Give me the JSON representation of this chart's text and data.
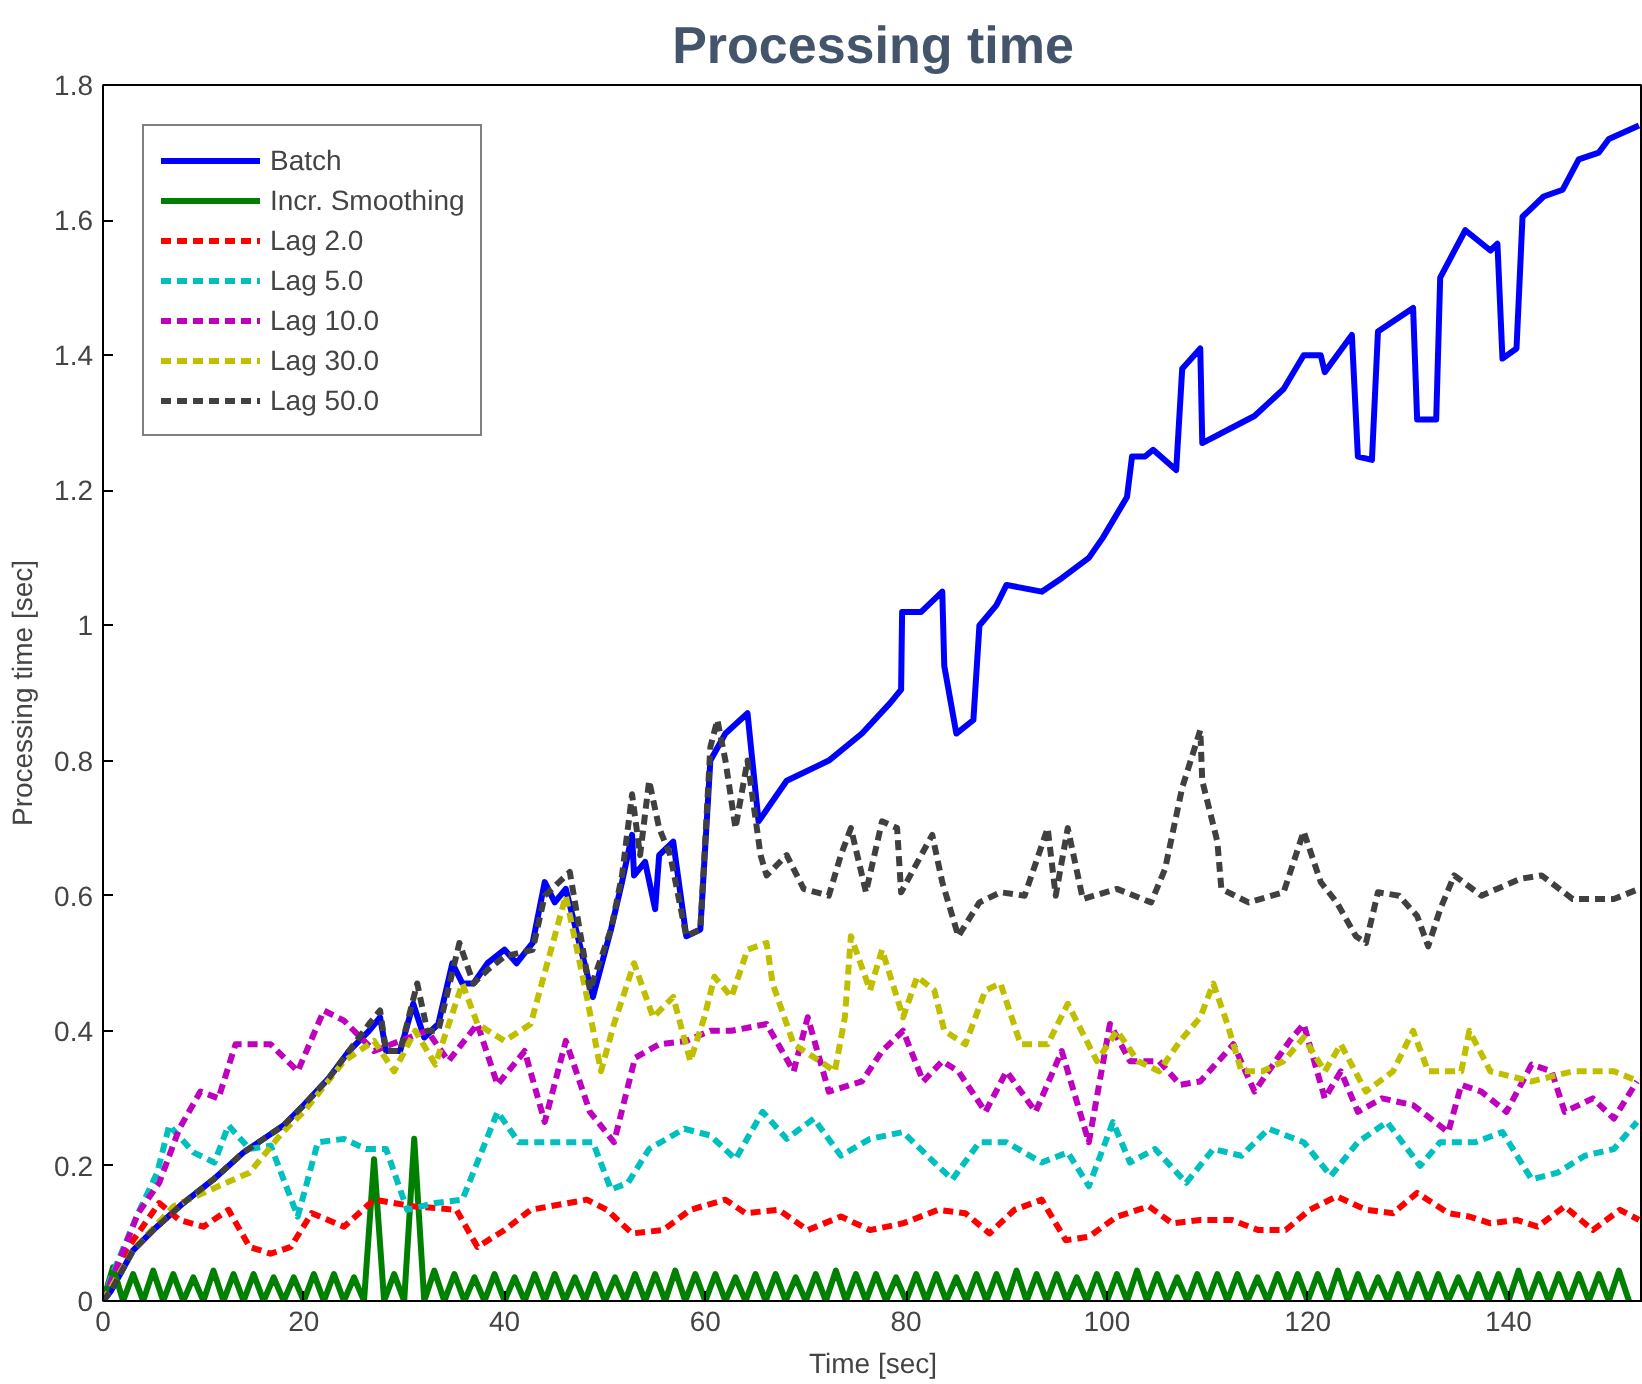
{
  "chart_data": {
    "type": "line",
    "title": "Processing time",
    "xlabel": "Time [sec]",
    "ylabel": "Processing time [sec]",
    "xlim": [
      0,
      153.4
    ],
    "ylim": [
      0,
      1.8
    ],
    "xticks": [
      0,
      20,
      40,
      60,
      80,
      100,
      120,
      140
    ],
    "yticks": [
      0,
      {
        "value": 0.2,
        "label": "0.2"
      },
      {
        "value": 0.4,
        "label": "0.4"
      },
      {
        "value": 0.6,
        "label": "0.6"
      },
      {
        "value": 0.8,
        "label": "0.8"
      },
      1,
      {
        "value": 1.2,
        "label": "1.2"
      },
      {
        "value": 1.4,
        "label": "1.4"
      },
      {
        "value": 1.6,
        "label": "1.6"
      },
      {
        "value": 1.8,
        "label": "1.8"
      }
    ],
    "grid": false,
    "legend": "top left",
    "marker": "none",
    "series": [
      {
        "name": "Batch",
        "color": "#0000ff",
        "line_style": "solid",
        "x": [
          0,
          0.8,
          3,
          5,
          8,
          11,
          14,
          16,
          18,
          20,
          22.5,
          24.5,
          26.5,
          27.6,
          28.2,
          29.6,
          30.9,
          32,
          33.4,
          34.8,
          35.8,
          36.9,
          38.3,
          40,
          41.2,
          42.8,
          44,
          45,
          46.1,
          48.8,
          50.6,
          51.7,
          52.7,
          52.9,
          54,
          55,
          55.4,
          56.8,
          58.1,
          59.5,
          60.5,
          62,
          64.2,
          65.3,
          68.1,
          72.3,
          75.6,
          78.4,
          79.5,
          79.6,
          81.5,
          83.6,
          83.8,
          85,
          86.7,
          87.3,
          89,
          90,
          93.5,
          95.5,
          98.2,
          99.6,
          102,
          102.5,
          103.8,
          104.6,
          106.9,
          107.5,
          109.3,
          109.5,
          113.4,
          114.7,
          117.6,
          119.6,
          121.3,
          121.7,
          124.4,
          125,
          126.4,
          127,
          130.5,
          130.9,
          132.8,
          133.2,
          135.7,
          138.2,
          138.9,
          139.4,
          140.8,
          141.4,
          143.5,
          145.4,
          147,
          149,
          150,
          153
        ],
        "values": [
          0,
          0.015,
          0.075,
          0.105,
          0.145,
          0.18,
          0.22,
          0.24,
          0.26,
          0.29,
          0.33,
          0.37,
          0.4,
          0.42,
          0.37,
          0.37,
          0.44,
          0.39,
          0.41,
          0.5,
          0.47,
          0.47,
          0.5,
          0.52,
          0.5,
          0.53,
          0.62,
          0.59,
          0.61,
          0.45,
          0.55,
          0.62,
          0.69,
          0.63,
          0.65,
          0.58,
          0.66,
          0.68,
          0.54,
          0.55,
          0.8,
          0.84,
          0.87,
          0.71,
          0.77,
          0.8,
          0.84,
          0.885,
          0.905,
          1.02,
          1.02,
          1.05,
          0.94,
          0.84,
          0.86,
          1,
          1.03,
          1.06,
          1.05,
          1.07,
          1.1,
          1.13,
          1.19,
          1.25,
          1.25,
          1.26,
          1.23,
          1.38,
          1.41,
          1.27,
          1.3,
          1.31,
          1.35,
          1.4,
          1.4,
          1.375,
          1.43,
          1.25,
          1.245,
          1.435,
          1.47,
          1.305,
          1.305,
          1.515,
          1.585,
          1.555,
          1.565,
          1.395,
          1.41,
          1.605,
          1.635,
          1.645,
          1.69,
          1.7,
          1.72,
          1.74
        ]
      },
      {
        "name": "Incr. Smoothing",
        "color": "#008000",
        "line_style": "solid",
        "x": [
          0,
          1,
          2,
          3,
          4,
          5,
          6,
          7,
          8,
          9,
          10,
          11,
          12,
          13,
          14,
          15,
          16,
          17,
          18,
          19,
          20,
          21,
          22,
          23,
          24,
          25,
          26,
          27,
          28,
          29,
          30,
          31,
          32,
          33,
          34,
          35,
          36,
          37,
          38,
          39,
          40,
          41,
          42,
          43,
          44,
          45,
          46,
          47,
          48,
          49,
          50,
          51,
          52,
          53,
          54,
          55,
          56,
          57,
          58,
          59,
          60,
          61,
          62,
          63,
          64,
          65,
          66,
          67,
          68,
          69,
          70,
          71,
          72,
          73,
          74,
          75,
          76,
          77,
          78,
          79,
          80,
          81,
          82,
          83,
          84,
          85,
          86,
          87,
          88,
          89,
          90,
          91,
          92,
          93,
          94,
          95,
          96,
          97,
          98,
          99,
          100,
          101,
          102,
          103,
          104,
          105,
          106,
          107,
          108,
          109,
          110,
          111,
          112,
          113,
          114,
          115,
          116,
          117,
          118,
          119,
          120,
          121,
          122,
          123,
          124,
          125,
          126,
          127,
          128,
          129,
          130,
          131,
          132,
          133,
          134,
          135,
          136,
          137,
          138,
          139,
          140,
          141,
          142,
          143,
          144,
          145,
          146,
          147,
          148,
          149,
          150,
          151,
          152
        ],
        "values": [
          0,
          0.05,
          0,
          0.04,
          0,
          0.045,
          0,
          0.04,
          0,
          0.035,
          0,
          0.045,
          0,
          0.04,
          0,
          0.04,
          0,
          0.035,
          0,
          0.035,
          0,
          0.04,
          0,
          0.04,
          0,
          0.035,
          0,
          0.21,
          0,
          0.04,
          0,
          0.24,
          0,
          0.045,
          0,
          0.04,
          0,
          0.035,
          0,
          0.04,
          0,
          0.035,
          0,
          0.04,
          0,
          0.04,
          0,
          0.035,
          0,
          0.04,
          0,
          0.035,
          0,
          0.04,
          0,
          0.04,
          0,
          0.045,
          0,
          0.04,
          0,
          0.04,
          0,
          0.035,
          0,
          0.04,
          0,
          0.04,
          0,
          0.035,
          0,
          0.04,
          0,
          0.045,
          0,
          0.04,
          0,
          0.04,
          0,
          0.035,
          0,
          0.04,
          0,
          0.04,
          0,
          0.035,
          0,
          0.04,
          0,
          0.04,
          0,
          0.045,
          0,
          0.04,
          0,
          0.04,
          0,
          0.035,
          0,
          0.04,
          0,
          0.04,
          0,
          0.045,
          0,
          0.04,
          0,
          0.035,
          0,
          0.04,
          0,
          0.04,
          0,
          0.04,
          0,
          0.035,
          0,
          0.04,
          0,
          0.04,
          0,
          0.04,
          0,
          0.045,
          0,
          0.04,
          0,
          0.035,
          0,
          0.04,
          0,
          0.04,
          0,
          0.04,
          0,
          0.035,
          0,
          0.04,
          0,
          0.04,
          0,
          0.045,
          0,
          0.04,
          0,
          0.04,
          0,
          0.04,
          0,
          0.04,
          0,
          0.045,
          0
        ]
      },
      {
        "name": "Lag 2.0",
        "color": "#ff0000",
        "line_style": "dashed",
        "x": [
          0,
          2.3,
          5.6,
          7.6,
          10,
          12.5,
          14.6,
          16.7,
          18.7,
          20.8,
          24,
          27,
          31,
          35.2,
          37.3,
          40,
          42.6,
          48.2,
          50.2,
          52.7,
          55.8,
          58.5,
          62,
          64,
          67.3,
          70.2,
          73.5,
          76.4,
          79.7,
          83.2,
          85.9,
          88.3,
          90.8,
          93.5,
          95.9,
          98.2,
          101,
          104.2,
          106.5,
          109.3,
          112.4,
          115.1,
          117.8,
          120.2,
          122.9,
          125.8,
          128.5,
          130.9,
          134,
          136.1,
          138.2,
          140.8,
          142.9,
          145.6,
          148.4,
          151.1,
          153
        ],
        "values": [
          0,
          0.075,
          0.145,
          0.12,
          0.11,
          0.135,
          0.08,
          0.07,
          0.08,
          0.13,
          0.11,
          0.15,
          0.14,
          0.135,
          0.08,
          0.105,
          0.135,
          0.15,
          0.135,
          0.1,
          0.105,
          0.135,
          0.15,
          0.13,
          0.135,
          0.105,
          0.125,
          0.105,
          0.115,
          0.135,
          0.13,
          0.1,
          0.135,
          0.15,
          0.09,
          0.095,
          0.125,
          0.14,
          0.115,
          0.12,
          0.12,
          0.105,
          0.105,
          0.135,
          0.155,
          0.135,
          0.13,
          0.16,
          0.13,
          0.125,
          0.115,
          0.12,
          0.11,
          0.14,
          0.105,
          0.135,
          0.12
        ]
      },
      {
        "name": "Lag 5.0",
        "color": "#00bfbf",
        "line_style": "dashed",
        "x": [
          0,
          0.8,
          3.5,
          5.4,
          6.6,
          9,
          11.1,
          12.5,
          14.6,
          16.7,
          19.4,
          21.4,
          24,
          26.2,
          28.2,
          30.3,
          33.1,
          35.8,
          39.3,
          41.4,
          45.5,
          48.8,
          50.6,
          52.3,
          54.4,
          57.9,
          60.5,
          63,
          65.7,
          68.1,
          70.8,
          73.5,
          76.4,
          79.7,
          82.8,
          84.6,
          87.3,
          90,
          93.5,
          96.1,
          98.2,
          100.6,
          102.3,
          104.8,
          107.9,
          110.6,
          113.4,
          116.1,
          119.6,
          122.3,
          125,
          127.9,
          131.2,
          133.2,
          136.7,
          139.4,
          142.3,
          144.9,
          147.6,
          150.5,
          152.8
        ],
        "values": [
          0,
          0.035,
          0.13,
          0.19,
          0.26,
          0.22,
          0.205,
          0.26,
          0.225,
          0.23,
          0.125,
          0.235,
          0.24,
          0.225,
          0.225,
          0.135,
          0.145,
          0.15,
          0.28,
          0.235,
          0.235,
          0.235,
          0.165,
          0.175,
          0.225,
          0.255,
          0.245,
          0.21,
          0.28,
          0.24,
          0.27,
          0.215,
          0.24,
          0.25,
          0.205,
          0.18,
          0.235,
          0.235,
          0.205,
          0.22,
          0.17,
          0.265,
          0.205,
          0.225,
          0.175,
          0.225,
          0.215,
          0.255,
          0.235,
          0.185,
          0.235,
          0.265,
          0.2,
          0.235,
          0.235,
          0.25,
          0.18,
          0.19,
          0.215,
          0.225,
          0.265
        ]
      },
      {
        "name": "Lag 10.0",
        "color": "#bf00bf",
        "line_style": "dashed",
        "x": [
          0,
          2.3,
          3.5,
          5.6,
          7.6,
          9.7,
          11.5,
          13.2,
          16.7,
          19.4,
          22,
          24,
          27,
          29.6,
          32.3,
          34.4,
          37.3,
          39.3,
          42,
          44,
          46.1,
          48.5,
          50.9,
          53,
          55.4,
          58.1,
          60.5,
          62.6,
          66.1,
          68.8,
          70.2,
          72.3,
          75.6,
          77.6,
          79.7,
          81.7,
          83.6,
          85.2,
          87.9,
          90,
          92.9,
          95.5,
          98.2,
          100.3,
          102.3,
          105.2,
          107.3,
          109.3,
          112.6,
          114.7,
          118.2,
          119.6,
          121.7,
          123.3,
          125,
          127.4,
          130.5,
          134,
          135.3,
          137.3,
          139.8,
          142.3,
          144.3,
          145.6,
          148.4,
          150.5,
          152.8
        ],
        "values": [
          0,
          0.085,
          0.13,
          0.175,
          0.255,
          0.31,
          0.3,
          0.38,
          0.38,
          0.34,
          0.43,
          0.415,
          0.37,
          0.385,
          0.4,
          0.355,
          0.41,
          0.32,
          0.37,
          0.265,
          0.385,
          0.28,
          0.235,
          0.36,
          0.38,
          0.385,
          0.4,
          0.4,
          0.41,
          0.34,
          0.42,
          0.31,
          0.325,
          0.37,
          0.4,
          0.325,
          0.355,
          0.34,
          0.28,
          0.34,
          0.28,
          0.37,
          0.235,
          0.41,
          0.355,
          0.355,
          0.32,
          0.325,
          0.38,
          0.31,
          0.385,
          0.41,
          0.3,
          0.34,
          0.28,
          0.3,
          0.29,
          0.25,
          0.32,
          0.31,
          0.28,
          0.35,
          0.34,
          0.28,
          0.3,
          0.27,
          0.325
        ]
      },
      {
        "name": "Lag 30.0",
        "color": "#bfbf00",
        "line_style": "dashed",
        "x": [
          0,
          3,
          7,
          11.5,
          14.6,
          17.9,
          20,
          24,
          27,
          29,
          31.1,
          33.1,
          35.8,
          37.3,
          40,
          42.6,
          46.1,
          48.2,
          49.6,
          50.9,
          52.9,
          54.8,
          56.8,
          58.5,
          59.9,
          60.9,
          62.6,
          64.2,
          66.1,
          66.7,
          68.8,
          71.4,
          72.9,
          73.9,
          74.5,
          76.4,
          77.6,
          79.7,
          81.1,
          82.8,
          83.8,
          85.9,
          87.9,
          89.4,
          91.4,
          94.1,
          96.1,
          99,
          101,
          103.1,
          105.2,
          107.3,
          109.3,
          110.6,
          112,
          113.4,
          115.5,
          117.6,
          119.6,
          121.7,
          123.3,
          125.8,
          128.5,
          130.5,
          132,
          135.3,
          136.1,
          138.2,
          142.3,
          146.4,
          150.5,
          153
        ],
        "values": [
          0,
          0.075,
          0.14,
          0.17,
          0.19,
          0.25,
          0.28,
          0.355,
          0.385,
          0.34,
          0.4,
          0.35,
          0.47,
          0.41,
          0.385,
          0.41,
          0.6,
          0.45,
          0.34,
          0.41,
          0.5,
          0.42,
          0.45,
          0.355,
          0.42,
          0.48,
          0.45,
          0.52,
          0.53,
          0.47,
          0.38,
          0.355,
          0.34,
          0.42,
          0.54,
          0.46,
          0.52,
          0.42,
          0.48,
          0.46,
          0.4,
          0.38,
          0.46,
          0.47,
          0.38,
          0.38,
          0.44,
          0.355,
          0.4,
          0.355,
          0.34,
          0.385,
          0.42,
          0.47,
          0.41,
          0.34,
          0.34,
          0.355,
          0.39,
          0.34,
          0.38,
          0.31,
          0.34,
          0.4,
          0.34,
          0.34,
          0.4,
          0.34,
          0.325,
          0.34,
          0.34,
          0.325
        ]
      },
      {
        "name": "Lag 50.0",
        "color": "#404040",
        "line_style": "dashed",
        "x": [
          0,
          0.8,
          3,
          5,
          8,
          11,
          14,
          16,
          18,
          20,
          22.5,
          24.5,
          26.5,
          27.6,
          28.2,
          29.6,
          31.3,
          32.3,
          33.4,
          35.5,
          36.9,
          38.3,
          40,
          42.8,
          44,
          46.5,
          48.5,
          50.6,
          51.7,
          52.7,
          53.5,
          54.4,
          55.4,
          56.5,
          58.1,
          59.5,
          60.5,
          61.2,
          62,
          63,
          64.2,
          65.5,
          66.1,
          68.1,
          69.8,
          72.3,
          73.5,
          74.5,
          76,
          77.6,
          79.1,
          79.5,
          82.6,
          83.6,
          85.2,
          87.3,
          89.4,
          91.8,
          94.1,
          94.9,
          96.1,
          97.6,
          101,
          104.4,
          105.8,
          107.5,
          109.3,
          109.5,
          111,
          111.4,
          114.1,
          117.6,
          119.6,
          121.3,
          122.9,
          124.8,
          125.8,
          127,
          129.1,
          130.9,
          132,
          133.2,
          134.6,
          137.3,
          141.2,
          143.3,
          146.4,
          150.5,
          153
        ],
        "values": [
          0,
          0.015,
          0.075,
          0.105,
          0.145,
          0.18,
          0.22,
          0.24,
          0.26,
          0.29,
          0.33,
          0.37,
          0.41,
          0.43,
          0.37,
          0.37,
          0.47,
          0.4,
          0.4,
          0.53,
          0.47,
          0.49,
          0.51,
          0.52,
          0.6,
          0.635,
          0.46,
          0.55,
          0.63,
          0.75,
          0.66,
          0.77,
          0.7,
          0.66,
          0.54,
          0.55,
          0.82,
          0.86,
          0.8,
          0.7,
          0.8,
          0.66,
          0.63,
          0.66,
          0.61,
          0.6,
          0.66,
          0.7,
          0.605,
          0.71,
          0.7,
          0.605,
          0.69,
          0.62,
          0.54,
          0.59,
          0.605,
          0.6,
          0.7,
          0.6,
          0.7,
          0.595,
          0.61,
          0.59,
          0.64,
          0.76,
          0.845,
          0.77,
          0.68,
          0.61,
          0.59,
          0.605,
          0.695,
          0.62,
          0.59,
          0.54,
          0.53,
          0.605,
          0.6,
          0.57,
          0.525,
          0.58,
          0.63,
          0.6,
          0.625,
          0.63,
          0.595,
          0.595,
          0.61
        ]
      }
    ]
  }
}
